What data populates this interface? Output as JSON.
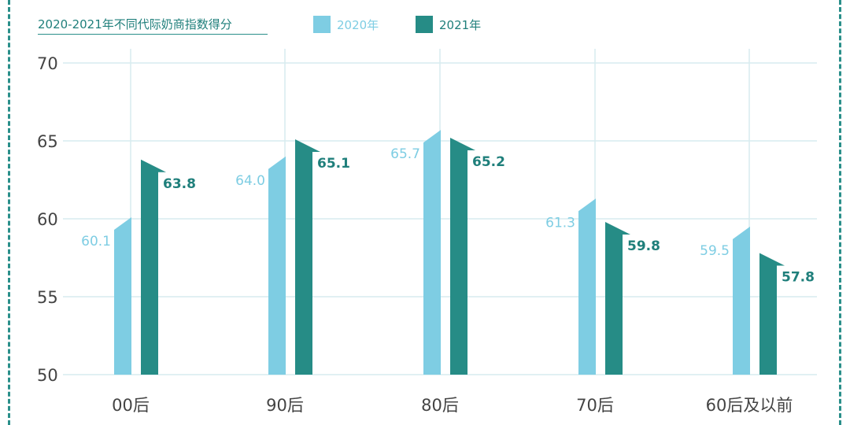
{
  "chart_data": {
    "type": "bar",
    "title": "2020-2021年不同代际奶商指数得分",
    "categories": [
      "00后",
      "90后",
      "80后",
      "70后",
      "60后及以前"
    ],
    "series": [
      {
        "name": "2020年",
        "values": [
          60.1,
          64.0,
          65.7,
          61.3,
          59.5
        ],
        "labels": [
          "60.1",
          "64.0",
          "65.7",
          "61.3",
          "59.5"
        ],
        "color": "#7ecde3"
      },
      {
        "name": "2021年",
        "values": [
          63.8,
          65.1,
          65.2,
          59.8,
          57.8
        ],
        "labels": [
          "63.8",
          "65.1",
          "65.2",
          "59.8",
          "57.8"
        ],
        "color": "#268c86"
      }
    ],
    "ylim": [
      50,
      70
    ],
    "yticks": [
      "50",
      "55",
      "60",
      "65",
      "70"
    ],
    "grid": true,
    "legend_position": "top",
    "xlabel": "",
    "ylabel": ""
  }
}
